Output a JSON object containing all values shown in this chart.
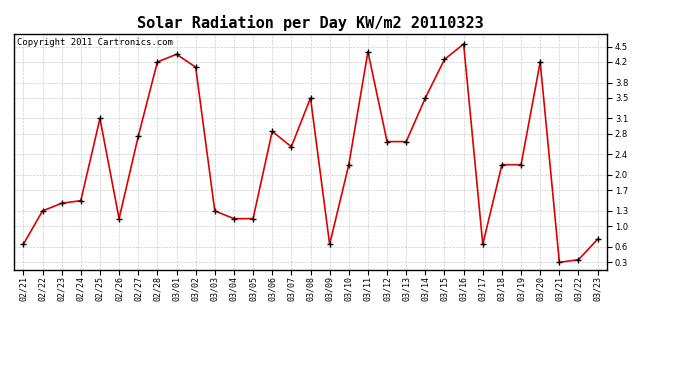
{
  "title": "Solar Radiation per Day KW/m2 20110323",
  "copyright_text": "Copyright 2011 Cartronics.com",
  "dates": [
    "02/21",
    "02/22",
    "02/23",
    "02/24",
    "02/25",
    "02/26",
    "02/27",
    "02/28",
    "03/01",
    "03/02",
    "03/03",
    "03/04",
    "03/05",
    "03/06",
    "03/07",
    "03/08",
    "03/09",
    "03/10",
    "03/11",
    "03/12",
    "03/13",
    "03/14",
    "03/15",
    "03/16",
    "03/17",
    "03/18",
    "03/19",
    "03/20",
    "03/21",
    "03/22",
    "03/23"
  ],
  "values": [
    0.65,
    1.3,
    1.45,
    1.5,
    3.1,
    1.15,
    2.75,
    4.2,
    4.35,
    4.1,
    1.3,
    1.15,
    1.15,
    2.85,
    2.55,
    3.5,
    0.65,
    2.2,
    4.4,
    2.65,
    2.65,
    3.5,
    4.25,
    4.55,
    0.65,
    2.2,
    2.2,
    4.2,
    0.3,
    0.35,
    0.75
  ],
  "line_color": "#dd0000",
  "marker": "+",
  "marker_color": "#000000",
  "marker_size": 4,
  "marker_linewidth": 1.0,
  "line_width": 1.2,
  "ylim": [
    0.15,
    4.75
  ],
  "yticks": [
    0.3,
    0.6,
    1.0,
    1.3,
    1.7,
    2.0,
    2.4,
    2.8,
    3.1,
    3.5,
    3.8,
    4.2,
    4.5
  ],
  "grid_color": "#cccccc",
  "grid_linestyle": "--",
  "background_color": "#ffffff",
  "title_fontsize": 11,
  "tick_fontsize": 6,
  "copyright_fontsize": 6.5
}
